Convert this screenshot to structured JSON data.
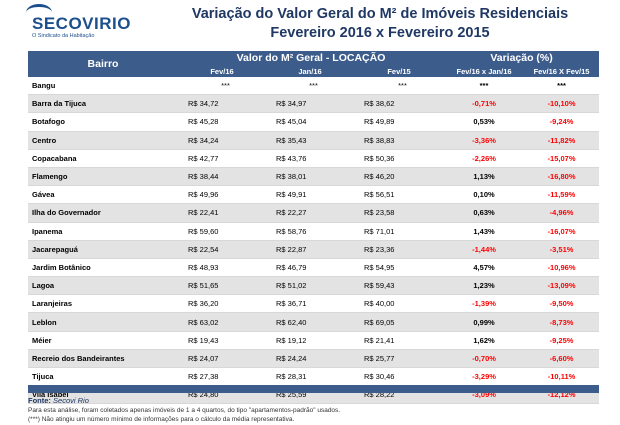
{
  "logo": {
    "name": "SECOVIRIO",
    "tagline": "O Sindicato da Habitação"
  },
  "title": {
    "line1": "Variação do Valor Geral do M² de Imóveis Residenciais",
    "line2": "Fevereiro 2016 x Fevereiro 2015"
  },
  "headers": {
    "bairro": "Bairro",
    "group_valor": "Valor do M² Geral - LOCAÇÃO",
    "group_variacao": "Variação  (%)",
    "cols": [
      "Fev/16",
      "Jan/16",
      "Fev/15",
      "Fev/16 x Jan/16",
      "Fev/16 X Fev/15"
    ]
  },
  "rows": [
    {
      "bairro": "Bangu",
      "fev16": "***",
      "jan16": "***",
      "fev15": "***",
      "var_jan": "***",
      "var_fev": "***"
    },
    {
      "bairro": "Barra da Tijuca",
      "fev16": "R$ 34,72",
      "jan16": "R$ 34,97",
      "fev15": "R$ 38,62",
      "var_jan": "-0,71%",
      "var_fev": "-10,10%"
    },
    {
      "bairro": "Botafogo",
      "fev16": "R$ 45,28",
      "jan16": "R$ 45,04",
      "fev15": "R$ 49,89",
      "var_jan": "0,53%",
      "var_fev": "-9,24%"
    },
    {
      "bairro": "Centro",
      "fev16": "R$ 34,24",
      "jan16": "R$ 35,43",
      "fev15": "R$ 38,83",
      "var_jan": "-3,36%",
      "var_fev": "-11,82%"
    },
    {
      "bairro": "Copacabana",
      "fev16": "R$ 42,77",
      "jan16": "R$ 43,76",
      "fev15": "R$ 50,36",
      "var_jan": "-2,26%",
      "var_fev": "-15,07%"
    },
    {
      "bairro": "Flamengo",
      "fev16": "R$ 38,44",
      "jan16": "R$ 38,01",
      "fev15": "R$ 46,20",
      "var_jan": "1,13%",
      "var_fev": "-16,80%"
    },
    {
      "bairro": "Gávea",
      "fev16": "R$ 49,96",
      "jan16": "R$ 49,91",
      "fev15": "R$ 56,51",
      "var_jan": "0,10%",
      "var_fev": "-11,59%"
    },
    {
      "bairro": "Ilha do Governador",
      "fev16": "R$ 22,41",
      "jan16": "R$ 22,27",
      "fev15": "R$ 23,58",
      "var_jan": "0,63%",
      "var_fev": "-4,96%"
    },
    {
      "bairro": "Ipanema",
      "fev16": "R$ 59,60",
      "jan16": "R$ 58,76",
      "fev15": "R$ 71,01",
      "var_jan": "1,43%",
      "var_fev": "-16,07%"
    },
    {
      "bairro": "Jacarepaguá",
      "fev16": "R$ 22,54",
      "jan16": "R$ 22,87",
      "fev15": "R$ 23,36",
      "var_jan": "-1,44%",
      "var_fev": "-3,51%"
    },
    {
      "bairro": "Jardim Botânico",
      "fev16": "R$ 48,93",
      "jan16": "R$ 46,79",
      "fev15": "R$ 54,95",
      "var_jan": "4,57%",
      "var_fev": "-10,96%"
    },
    {
      "bairro": "Lagoa",
      "fev16": "R$ 51,65",
      "jan16": "R$ 51,02",
      "fev15": "R$ 59,43",
      "var_jan": "1,23%",
      "var_fev": "-13,09%"
    },
    {
      "bairro": "Laranjeiras",
      "fev16": "R$ 36,20",
      "jan16": "R$ 36,71",
      "fev15": "R$ 40,00",
      "var_jan": "-1,39%",
      "var_fev": "-9,50%"
    },
    {
      "bairro": "Leblon",
      "fev16": "R$ 63,02",
      "jan16": "R$ 62,40",
      "fev15": "R$ 69,05",
      "var_jan": "0,99%",
      "var_fev": "-8,73%"
    },
    {
      "bairro": "Méier",
      "fev16": "R$ 19,43",
      "jan16": "R$ 19,12",
      "fev15": "R$ 21,41",
      "var_jan": "1,62%",
      "var_fev": "-9,25%"
    },
    {
      "bairro": "Recreio dos Bandeirantes",
      "fev16": "R$ 24,07",
      "jan16": "R$ 24,24",
      "fev15": "R$ 25,77",
      "var_jan": "-0,70%",
      "var_fev": "-6,60%"
    },
    {
      "bairro": "Tijuca",
      "fev16": "R$ 27,38",
      "jan16": "R$ 28,31",
      "fev15": "R$ 30,46",
      "var_jan": "-3,29%",
      "var_fev": "-10,11%"
    },
    {
      "bairro": "Vila Isabel",
      "fev16": "R$ 24,80",
      "jan16": "R$ 25,59",
      "fev15": "R$ 28,22",
      "var_jan": "-3,09%",
      "var_fev": "-12,12%"
    }
  ],
  "footer": {
    "source_label": "Fonte:",
    "source_name": "Secovi Rio",
    "note1": "Para esta análise, foram coletados apenas imóveis de 1 a 4 quartos, do tipo \"apartamentos-padrão\" usados.",
    "note2": "(***) Não atingiu um número mínimo de informações para o cálculo da média representativa."
  },
  "colors": {
    "header_bg": "#3c5c8c",
    "title": "#1f3864",
    "negative": "#ff0000",
    "stripe": "#e3e3e3"
  }
}
